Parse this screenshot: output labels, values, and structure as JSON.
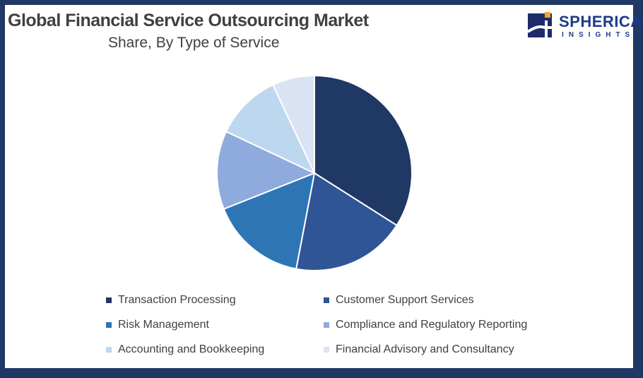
{
  "header": {
    "title": "Global Financial Service Outsourcing Market",
    "subtitle": "Share, By Type of Service"
  },
  "logo": {
    "word": "SPHERICAL",
    "sub": "INSIGHTS"
  },
  "chart_data": {
    "type": "pie",
    "title": "Global Financial Service Outsourcing Market",
    "subtitle": "Share, By Type of Service",
    "legend_position": "bottom",
    "categories": [
      "Transaction Processing",
      "Customer Support Services",
      "Risk Management",
      "Compliance and Regulatory Reporting",
      "Accounting and Bookkeeping",
      "Financial Advisory and Consultancy"
    ],
    "values": [
      34,
      19,
      16,
      13,
      11,
      7
    ],
    "unit": "%",
    "colors": [
      "#203864",
      "#2f5597",
      "#2e75b6",
      "#8faadc",
      "#bdd7ee",
      "#dae3f3"
    ]
  }
}
